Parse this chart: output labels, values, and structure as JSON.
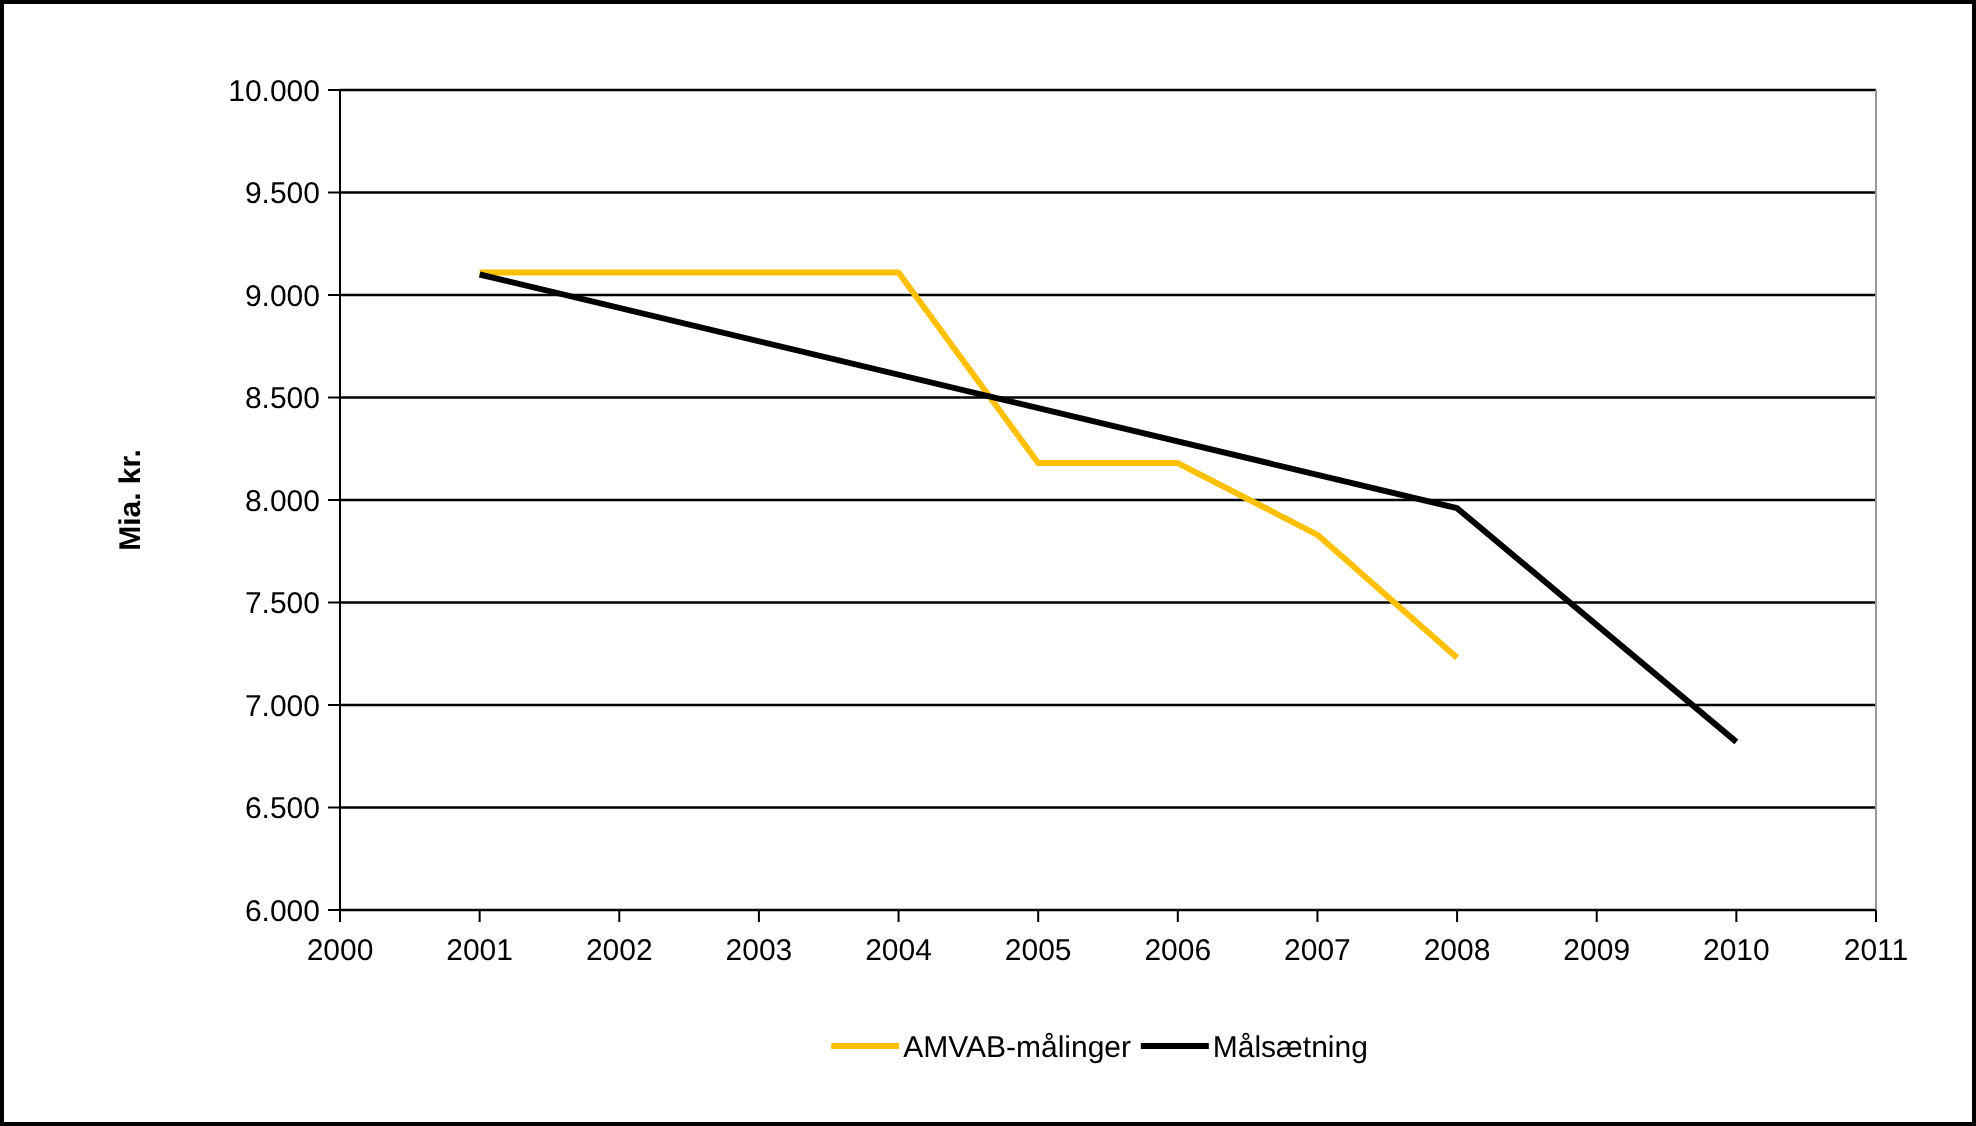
{
  "chart_data": {
    "type": "line",
    "ylabel": "Mia. kr.",
    "xlim": [
      2000,
      2011
    ],
    "xticks": [
      2000,
      2001,
      2002,
      2003,
      2004,
      2005,
      2006,
      2007,
      2008,
      2009,
      2010,
      2011
    ],
    "ylim": [
      6000,
      10000
    ],
    "yticks": [
      {
        "value": 6000,
        "label": "6.000"
      },
      {
        "value": 6500,
        "label": "6.500"
      },
      {
        "value": 7000,
        "label": "7.000"
      },
      {
        "value": 7500,
        "label": "7.500"
      },
      {
        "value": 8000,
        "label": "8.000"
      },
      {
        "value": 8500,
        "label": "8.500"
      },
      {
        "value": 9000,
        "label": "9.000"
      },
      {
        "value": 9500,
        "label": "9.500"
      },
      {
        "value": 10000,
        "label": "10.000"
      }
    ],
    "grid": "y",
    "legend": "bottom",
    "marker": "none",
    "series": [
      {
        "name": "AMVAB-målinger",
        "color": "#ffc000",
        "x": [
          2001,
          2004,
          2005,
          2006,
          2007,
          2008
        ],
        "values": [
          9110,
          9110,
          8180,
          8180,
          7830,
          7230
        ]
      },
      {
        "name": "Målsætning",
        "color": "#000000",
        "x": [
          2001,
          2008,
          2010
        ],
        "values": [
          9100,
          7960,
          6820
        ]
      }
    ]
  }
}
